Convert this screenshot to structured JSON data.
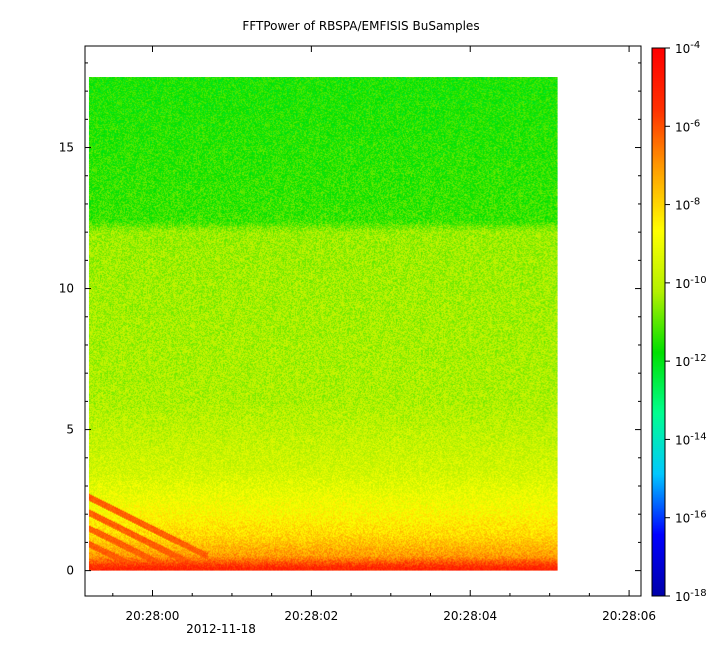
{
  "chart_data": {
    "type": "heatmap",
    "title": "FFTPower of RBSPA/EMFISIS  BuSamples",
    "xlabel": "",
    "ylabel": "",
    "x_ticks": [
      "20:28:00",
      "20:28:02",
      "20:28:04",
      "20:28:06"
    ],
    "x_tick_seconds": [
      0,
      2,
      4,
      6
    ],
    "x_date_label": "2012-11-18",
    "xlim_seconds": [
      -0.85,
      6.15
    ],
    "data_x_range_seconds": [
      -0.8,
      5.1
    ],
    "y_ticks": [
      "0",
      "5",
      "10",
      "15"
    ],
    "y_tick_values": [
      0,
      5,
      10,
      15
    ],
    "ylim": [
      -0.9,
      18.6
    ],
    "data_y_range": [
      0,
      17.5
    ],
    "colorbar": {
      "scale": "log",
      "range": [
        1e-18,
        0.0001
      ],
      "tick_exponents": [
        -4,
        -6,
        -8,
        -10,
        -12,
        -14,
        -16,
        -18
      ],
      "tick_labels": [
        "10-4",
        "10-6",
        "10-8",
        "10-10",
        "10-12",
        "10-14",
        "10-16",
        "10-18"
      ],
      "colors": [
        "#0000aa",
        "#0000ff",
        "#00c8ff",
        "#00ff90",
        "#00e000",
        "#b4f000",
        "#ffff00",
        "#ffa000",
        "#ff3000",
        "#ff0000"
      ]
    },
    "power_profile": {
      "description_values_log10": [
        {
          "y": 0.1,
          "log_power": -5.2
        },
        {
          "y": 0.5,
          "log_power": -7.0
        },
        {
          "y": 1.2,
          "log_power": -8.0
        },
        {
          "y": 2.2,
          "log_power": -8.8
        },
        {
          "y": 3.5,
          "log_power": -9.6
        },
        {
          "y": 6.0,
          "log_power": -10.2
        },
        {
          "y": 12.0,
          "log_power": -10.4
        },
        {
          "y": 12.4,
          "log_power": -11.3
        },
        {
          "y": 17.5,
          "log_power": -11.6
        }
      ]
    }
  }
}
